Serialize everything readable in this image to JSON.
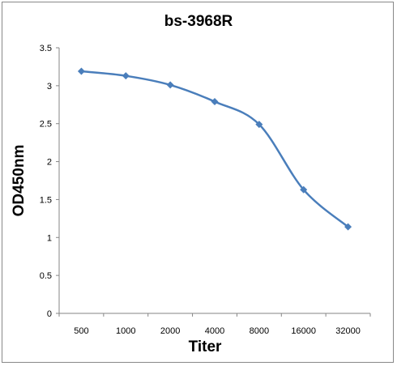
{
  "chart_data": {
    "type": "line",
    "title": "bs-3968R",
    "xlabel": "Titer",
    "ylabel": "OD450nm",
    "categories": [
      "500",
      "1000",
      "2000",
      "4000",
      "8000",
      "16000",
      "32000"
    ],
    "series": [
      {
        "values": [
          3.19,
          3.13,
          3.01,
          2.79,
          2.49,
          1.63,
          1.14
        ]
      }
    ],
    "ylim": [
      0,
      3.5
    ],
    "yticks": [
      "0",
      "0.5",
      "1",
      "1.5",
      "2",
      "2.5",
      "3",
      "3.5"
    ],
    "grid": false,
    "legend": "none",
    "line_color": "#4a7ebb",
    "smooth": true,
    "marker": "diamond"
  }
}
